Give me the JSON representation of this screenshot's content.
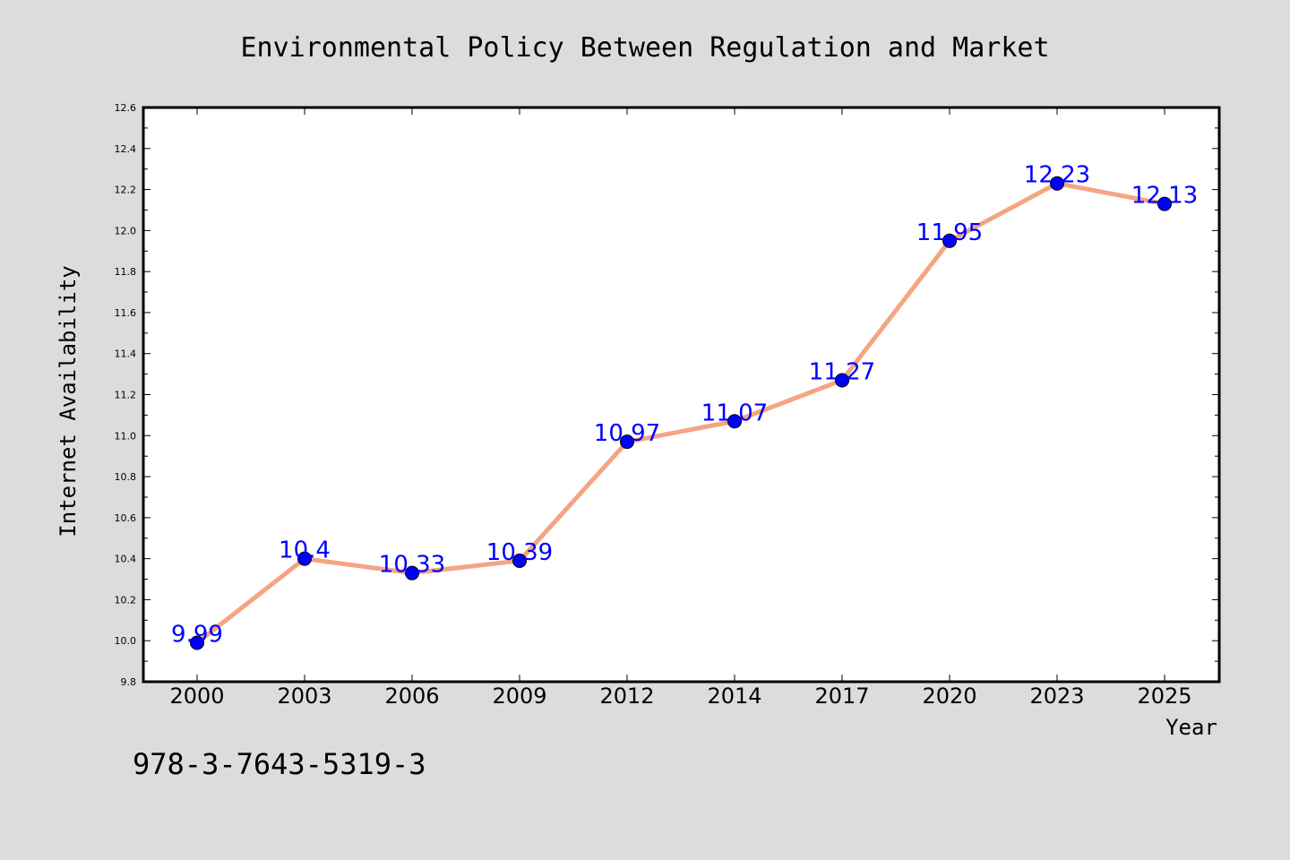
{
  "chart_data": {
    "type": "line",
    "title": "Environmental Policy Between Regulation and Market",
    "xlabel": "Year",
    "ylabel": "Internet Availability",
    "categories": [
      "2000",
      "2003",
      "2006",
      "2009",
      "2012",
      "2014",
      "2017",
      "2020",
      "2023",
      "2025"
    ],
    "series": [
      {
        "values": [
          9.99,
          10.4,
          10.33,
          10.39,
          10.97,
          11.07,
          11.27,
          11.95,
          12.23,
          12.13
        ],
        "labels": [
          "9.99",
          "10.4",
          "10.33",
          "10.39",
          "10.97",
          "11.07",
          "11.27",
          "11.95",
          "12.23",
          "12.13"
        ],
        "line_color": "#f4a582",
        "marker_color": "#0000ff"
      }
    ],
    "yticks": [
      "9.8",
      "10.0",
      "10.2",
      "10.4",
      "10.6",
      "10.8",
      "11.0",
      "11.2",
      "11.4",
      "11.6",
      "11.8",
      "12.0",
      "12.2",
      "12.4",
      "12.6"
    ],
    "ylim": [
      9.8,
      12.6
    ],
    "grid": false,
    "legend": "none"
  },
  "footer": {
    "isbn": "978-3-7643-5319-3"
  },
  "colors": {
    "background": "#dcdcdc",
    "plot_background": "#ffffff",
    "label_color": "#0000ff"
  }
}
